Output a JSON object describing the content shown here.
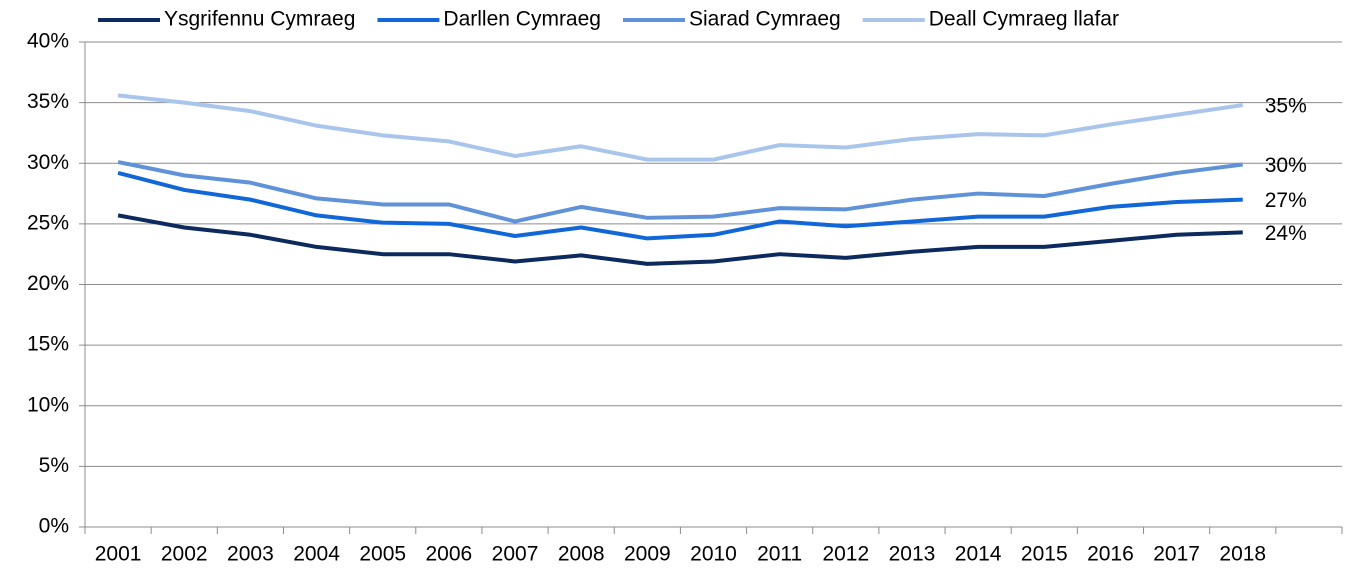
{
  "chart_data": {
    "type": "line",
    "categories": [
      "2001",
      "2002",
      "2003",
      "2004",
      "2005",
      "2006",
      "2007",
      "2008",
      "2009",
      "2010",
      "2011",
      "2012",
      "2013",
      "2014",
      "2015",
      "2016",
      "2017",
      "2018",
      null
    ],
    "series": [
      {
        "name": "Ysgrifennu Cymraeg",
        "color": "#0d2a5e",
        "values": [
          25.7,
          24.7,
          24.1,
          23.1,
          22.5,
          22.5,
          21.9,
          22.4,
          21.7,
          21.9,
          22.5,
          22.2,
          22.7,
          23.1,
          23.1,
          23.6,
          24.1,
          24.3,
          null
        ],
        "value_labels": [
          null,
          null,
          null,
          null,
          null,
          null,
          null,
          null,
          null,
          null,
          null,
          null,
          null,
          null,
          null,
          null,
          null,
          "24%",
          null
        ]
      },
      {
        "name": "Darllen Cymraeg",
        "color": "#1267d8",
        "values": [
          29.2,
          27.8,
          27.0,
          25.7,
          25.1,
          25.0,
          24.0,
          24.7,
          23.8,
          24.1,
          25.2,
          24.8,
          25.2,
          25.6,
          25.6,
          26.4,
          26.8,
          27.0,
          null
        ],
        "value_labels": [
          null,
          null,
          null,
          null,
          null,
          null,
          null,
          null,
          null,
          null,
          null,
          null,
          null,
          null,
          null,
          null,
          null,
          "27%",
          null
        ]
      },
      {
        "name": "Siarad Cymraeg",
        "color": "#5f92d8",
        "values": [
          30.1,
          29.0,
          28.4,
          27.1,
          26.6,
          26.6,
          25.2,
          26.4,
          25.5,
          25.6,
          26.3,
          26.2,
          27.0,
          27.5,
          27.3,
          28.3,
          29.2,
          29.9,
          null
        ],
        "value_labels": [
          null,
          null,
          null,
          null,
          null,
          null,
          null,
          null,
          null,
          null,
          null,
          null,
          null,
          null,
          null,
          null,
          null,
          "30%",
          null
        ]
      },
      {
        "name": "Deall Cymraeg llafar",
        "color": "#a9c5ec",
        "values": [
          35.6,
          35.0,
          34.3,
          33.1,
          32.3,
          31.8,
          30.6,
          31.4,
          30.3,
          30.3,
          31.5,
          31.3,
          32.0,
          32.4,
          32.3,
          33.2,
          34.0,
          34.8,
          null
        ],
        "value_labels": [
          null,
          null,
          null,
          null,
          null,
          null,
          null,
          null,
          null,
          null,
          null,
          null,
          null,
          null,
          null,
          null,
          null,
          "35%",
          null
        ]
      }
    ],
    "ylim": [
      0,
      40
    ],
    "yticks": [
      {
        "value": 0,
        "label": "0%"
      },
      {
        "value": 5,
        "label": "5%"
      },
      {
        "value": 10,
        "label": "10%"
      },
      {
        "value": 15,
        "label": "15%"
      },
      {
        "value": 20,
        "label": "20%"
      },
      {
        "value": 25,
        "label": "25%"
      },
      {
        "value": 30,
        "label": "30%"
      },
      {
        "value": 35,
        "label": "35%"
      },
      {
        "value": 40,
        "label": "40%"
      }
    ],
    "grid": true,
    "legend": "top"
  }
}
